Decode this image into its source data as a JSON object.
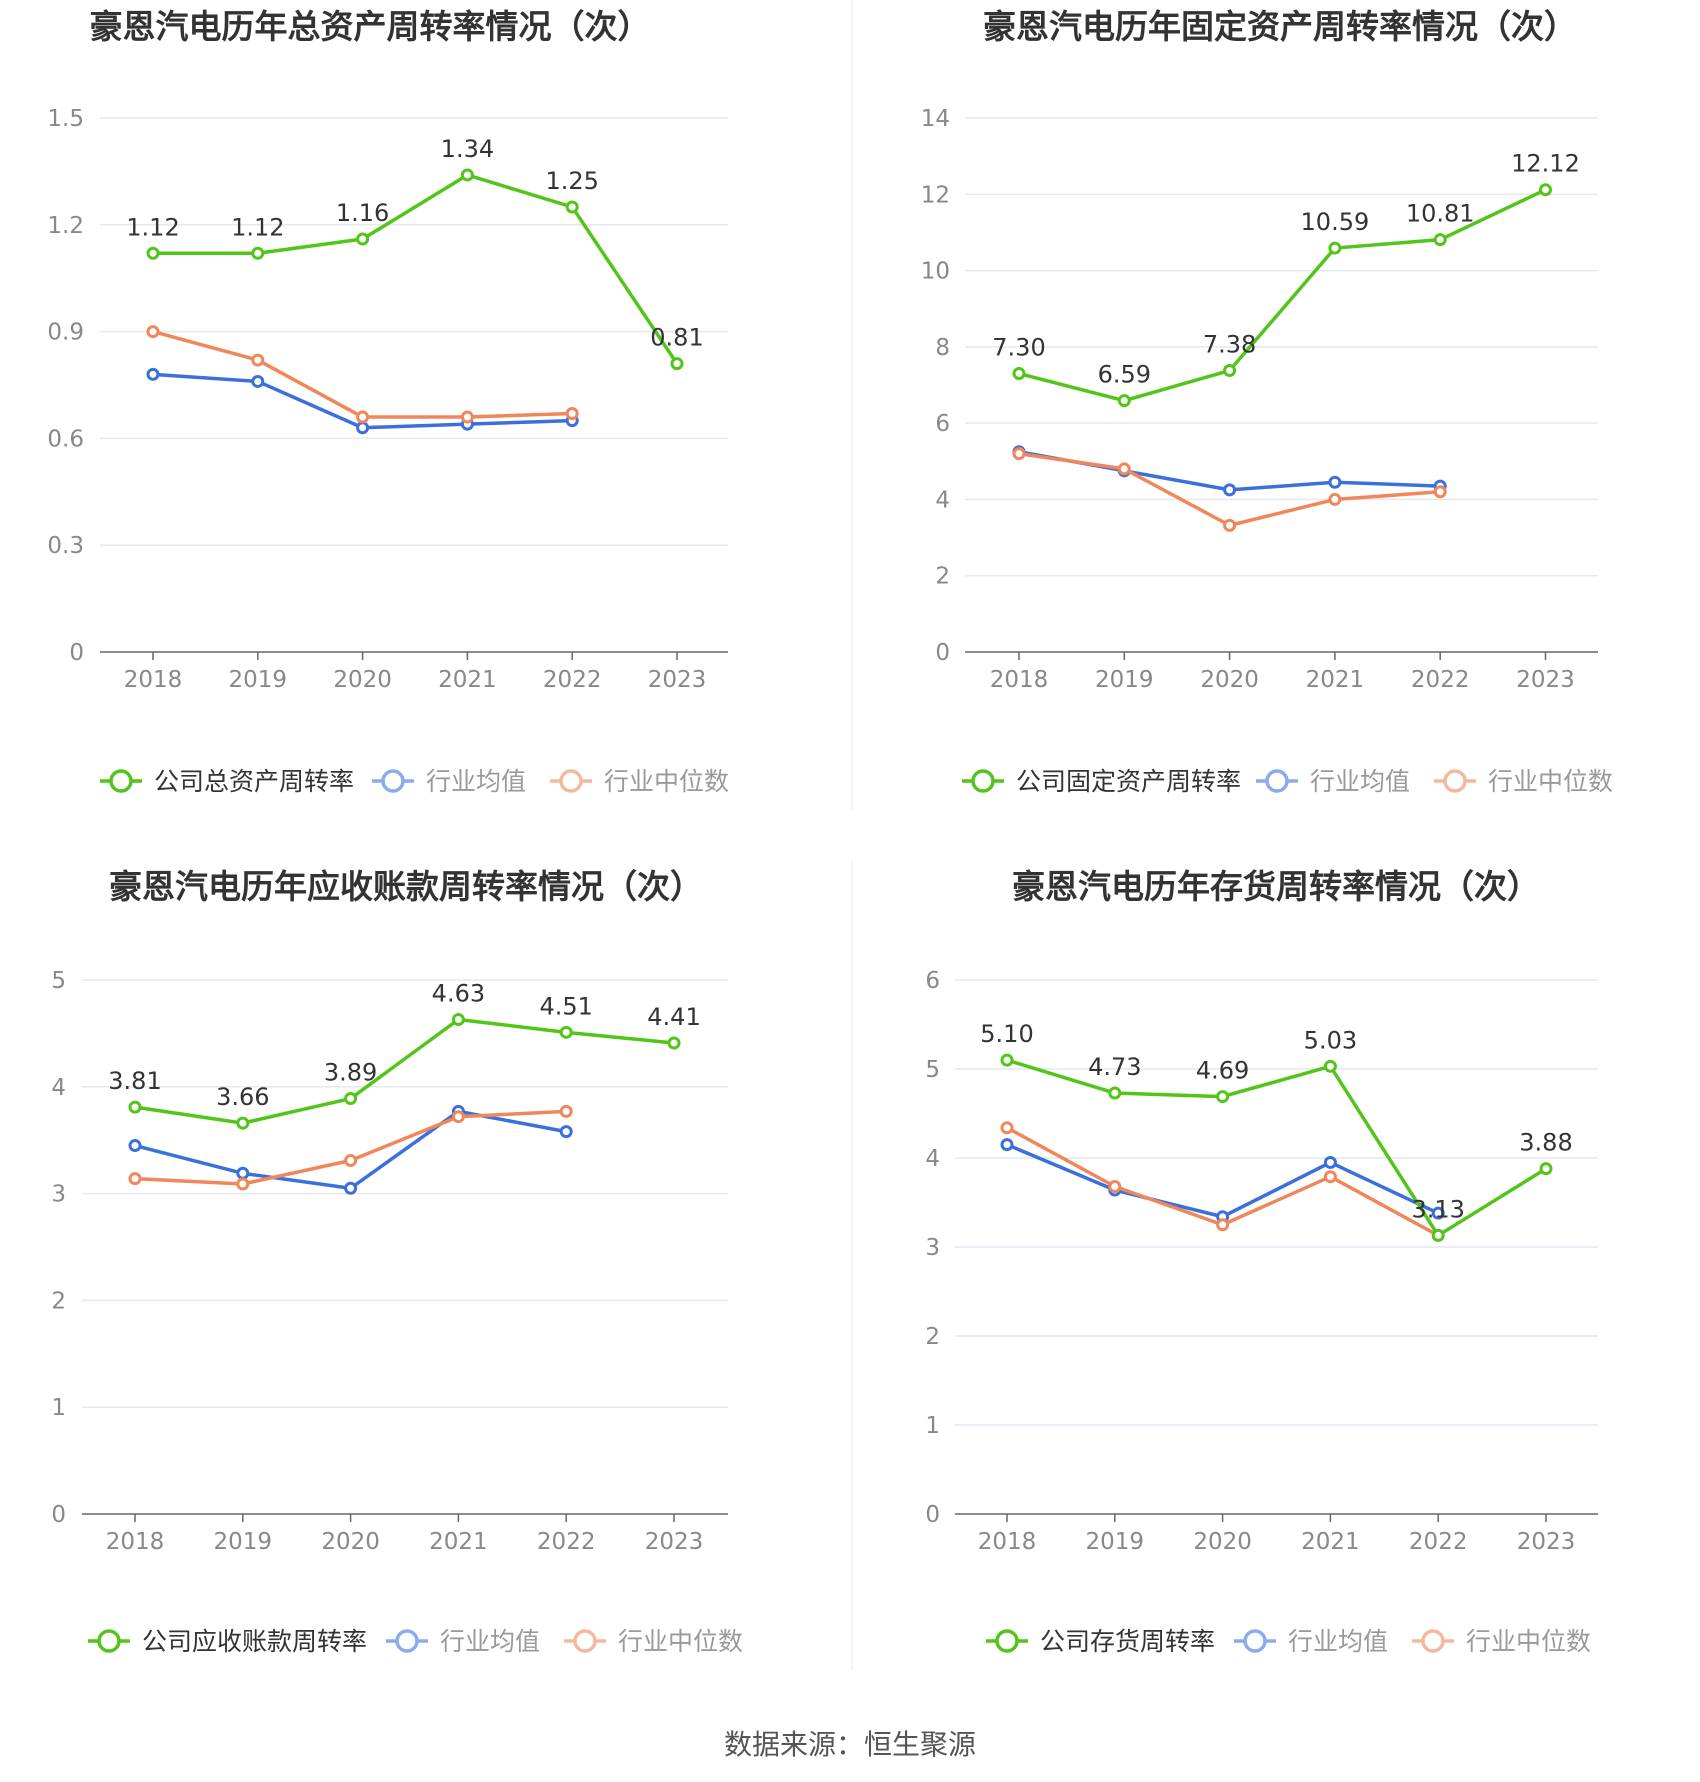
{
  "source_text": "数据来源：恒生聚源",
  "colors": {
    "company": "#52c41a",
    "avg": "#3b6fdb",
    "median": "#f0875a",
    "grid": "#e4e8f0",
    "axis": "#666666",
    "tick_text": "#888888",
    "title": "#333333",
    "legend_text_main": "#333333",
    "legend_text_other": "#999999"
  },
  "chart_data": [
    {
      "type": "line",
      "title": "豪恩汽电历年总资产周转率情况（次）",
      "categories": [
        "2018",
        "2019",
        "2020",
        "2021",
        "2022",
        "2023"
      ],
      "ylim": [
        0,
        1.5
      ],
      "yticks": [
        "0",
        "0.3",
        "0.6",
        "0.9",
        "1.2",
        "1.5"
      ],
      "series": [
        {
          "name": "公司总资产周转率",
          "role": "company",
          "values": [
            1.12,
            1.12,
            1.16,
            1.34,
            1.25,
            0.81
          ],
          "labels": [
            "1.12",
            "1.12",
            "1.16",
            "1.34",
            "1.25",
            "0.81"
          ]
        },
        {
          "name": "行业均值",
          "role": "avg",
          "values": [
            0.78,
            0.76,
            0.63,
            0.64,
            0.65,
            null
          ]
        },
        {
          "name": "行业中位数",
          "role": "median",
          "values": [
            0.9,
            0.82,
            0.66,
            0.66,
            0.67,
            null
          ]
        }
      ]
    },
    {
      "type": "line",
      "title": "豪恩汽电历年固定资产周转率情况（次）",
      "categories": [
        "2018",
        "2019",
        "2020",
        "2021",
        "2022",
        "2023"
      ],
      "ylim": [
        0,
        14
      ],
      "yticks": [
        "0",
        "2",
        "4",
        "6",
        "8",
        "10",
        "12",
        "14"
      ],
      "series": [
        {
          "name": "公司固定资产周转率",
          "role": "company",
          "values": [
            7.3,
            6.59,
            7.38,
            10.59,
            10.81,
            12.12
          ],
          "labels": [
            "7.30",
            "6.59",
            "7.38",
            "10.59",
            "10.81",
            "12.12"
          ]
        },
        {
          "name": "行业均值",
          "role": "avg",
          "values": [
            5.25,
            4.75,
            4.25,
            4.45,
            4.35,
            null
          ]
        },
        {
          "name": "行业中位数",
          "role": "median",
          "values": [
            5.2,
            4.8,
            3.32,
            4.0,
            4.2,
            null
          ]
        }
      ]
    },
    {
      "type": "line",
      "title": "豪恩汽电历年应收账款周转率情况（次）",
      "categories": [
        "2018",
        "2019",
        "2020",
        "2021",
        "2022",
        "2023"
      ],
      "ylim": [
        0,
        5
      ],
      "yticks": [
        "0",
        "1",
        "2",
        "3",
        "4",
        "5"
      ],
      "series": [
        {
          "name": "公司应收账款周转率",
          "role": "company",
          "values": [
            3.81,
            3.66,
            3.89,
            4.63,
            4.51,
            4.41
          ],
          "labels": [
            "3.81",
            "3.66",
            "3.89",
            "4.63",
            "4.51",
            "4.41"
          ]
        },
        {
          "name": "行业均值",
          "role": "avg",
          "values": [
            3.45,
            3.19,
            3.05,
            3.77,
            3.58,
            null
          ]
        },
        {
          "name": "行业中位数",
          "role": "median",
          "values": [
            3.14,
            3.09,
            3.31,
            3.72,
            3.77,
            null
          ]
        }
      ]
    },
    {
      "type": "line",
      "title": "豪恩汽电历年存货周转率情况（次）",
      "categories": [
        "2018",
        "2019",
        "2020",
        "2021",
        "2022",
        "2023"
      ],
      "ylim": [
        0,
        6
      ],
      "yticks": [
        "0",
        "1",
        "2",
        "3",
        "4",
        "5",
        "6"
      ],
      "series": [
        {
          "name": "公司存货周转率",
          "role": "company",
          "values": [
            5.1,
            4.73,
            4.69,
            5.03,
            3.13,
            3.88
          ],
          "labels": [
            "5.10",
            "4.73",
            "4.69",
            "5.03",
            "3.13",
            "3.88"
          ]
        },
        {
          "name": "行业均值",
          "role": "avg",
          "values": [
            4.15,
            3.64,
            3.34,
            3.95,
            3.38,
            null
          ]
        },
        {
          "name": "行业中位数",
          "role": "median",
          "values": [
            4.34,
            3.68,
            3.25,
            3.79,
            3.13,
            null
          ]
        }
      ]
    }
  ]
}
